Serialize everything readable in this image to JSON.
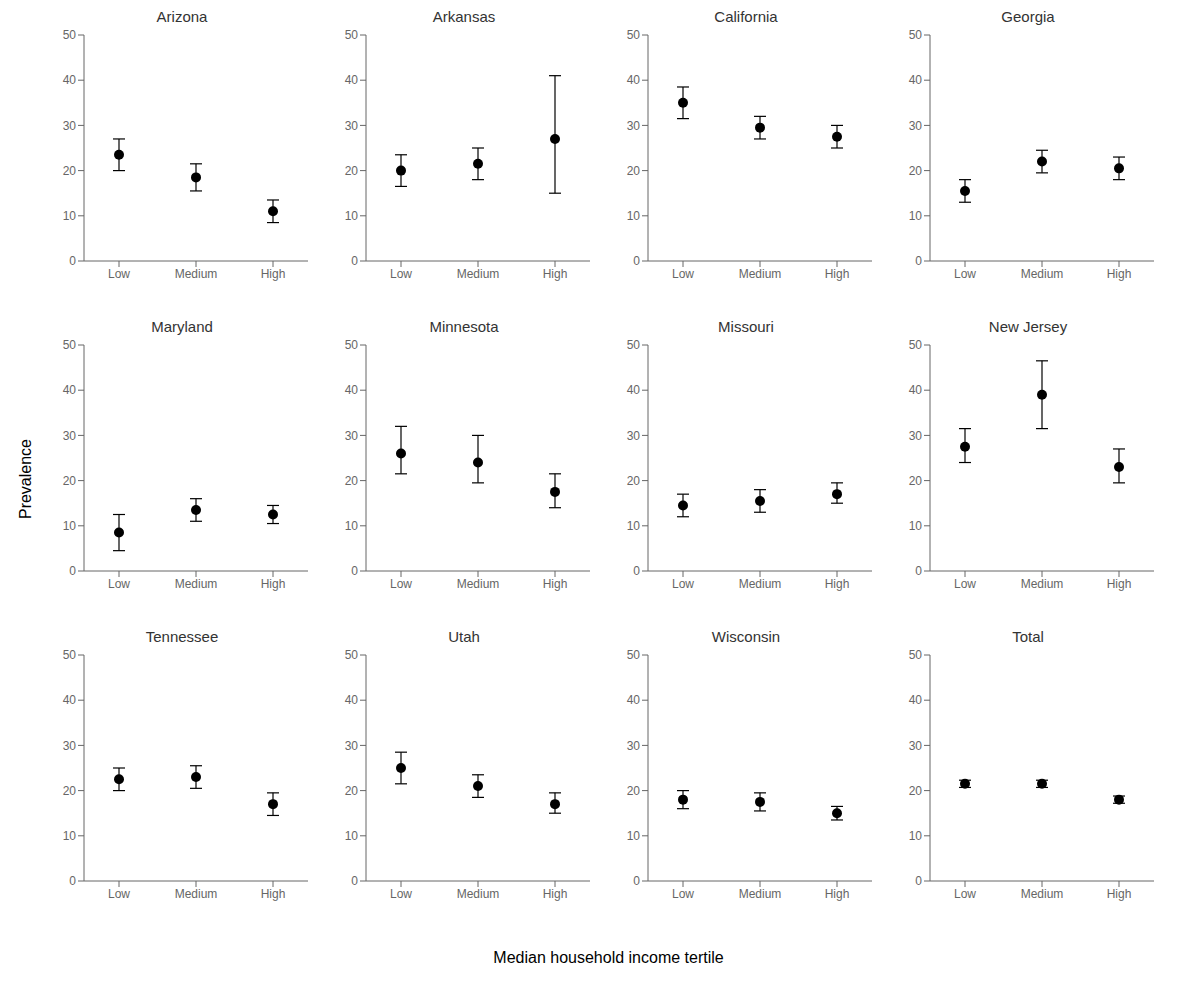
{
  "xlabel": "Median household income tertile",
  "ylabel": "Prevalence",
  "chart_data": [
    {
      "type": "scatter",
      "title": "Arizona",
      "categories": [
        "Low",
        "Medium",
        "High"
      ],
      "values": [
        23.5,
        18.5,
        11.0
      ],
      "errors_low": [
        3.5,
        3.0,
        2.5
      ],
      "errors_high": [
        3.5,
        3.0,
        2.5
      ],
      "color": "#000000",
      "ylim": [
        0,
        50
      ],
      "yticks": [
        0,
        10,
        20,
        30,
        40,
        50
      ],
      "grid": false
    },
    {
      "type": "scatter",
      "title": "Arkansas",
      "categories": [
        "Low",
        "Medium",
        "High"
      ],
      "values": [
        20.0,
        21.5,
        27.0
      ],
      "errors_low": [
        3.5,
        3.5,
        12.0
      ],
      "errors_high": [
        3.5,
        3.5,
        14.0
      ],
      "color": "#000000",
      "ylim": [
        0,
        50
      ],
      "yticks": [
        0,
        10,
        20,
        30,
        40,
        50
      ],
      "grid": false
    },
    {
      "type": "scatter",
      "title": "California",
      "categories": [
        "Low",
        "Medium",
        "High"
      ],
      "values": [
        35.0,
        29.5,
        27.5
      ],
      "errors_low": [
        3.5,
        2.5,
        2.5
      ],
      "errors_high": [
        3.5,
        2.5,
        2.5
      ],
      "color": "#000000",
      "ylim": [
        0,
        50
      ],
      "yticks": [
        0,
        10,
        20,
        30,
        40,
        50
      ],
      "grid": false
    },
    {
      "type": "scatter",
      "title": "Georgia",
      "categories": [
        "Low",
        "Medium",
        "High"
      ],
      "values": [
        15.5,
        22.0,
        20.5
      ],
      "errors_low": [
        2.5,
        2.5,
        2.5
      ],
      "errors_high": [
        2.5,
        2.5,
        2.5
      ],
      "color": "#000000",
      "ylim": [
        0,
        50
      ],
      "yticks": [
        0,
        10,
        20,
        30,
        40,
        50
      ],
      "grid": false
    },
    {
      "type": "scatter",
      "title": "Maryland",
      "categories": [
        "Low",
        "Medium",
        "High"
      ],
      "values": [
        8.5,
        13.5,
        12.5
      ],
      "errors_low": [
        4.0,
        2.5,
        2.0
      ],
      "errors_high": [
        4.0,
        2.5,
        2.0
      ],
      "color": "#000000",
      "ylim": [
        0,
        50
      ],
      "yticks": [
        0,
        10,
        20,
        30,
        40,
        50
      ],
      "grid": false
    },
    {
      "type": "scatter",
      "title": "Minnesota",
      "categories": [
        "Low",
        "Medium",
        "High"
      ],
      "values": [
        26.0,
        24.0,
        17.5
      ],
      "errors_low": [
        4.5,
        4.5,
        3.5
      ],
      "errors_high": [
        6.0,
        6.0,
        4.0
      ],
      "color": "#000000",
      "ylim": [
        0,
        50
      ],
      "yticks": [
        0,
        10,
        20,
        30,
        40,
        50
      ],
      "grid": false
    },
    {
      "type": "scatter",
      "title": "Missouri",
      "categories": [
        "Low",
        "Medium",
        "High"
      ],
      "values": [
        14.5,
        15.5,
        17.0
      ],
      "errors_low": [
        2.5,
        2.5,
        2.0
      ],
      "errors_high": [
        2.5,
        2.5,
        2.5
      ],
      "color": "#000000",
      "ylim": [
        0,
        50
      ],
      "yticks": [
        0,
        10,
        20,
        30,
        40,
        50
      ],
      "grid": false
    },
    {
      "type": "scatter",
      "title": "New Jersey",
      "categories": [
        "Low",
        "Medium",
        "High"
      ],
      "values": [
        27.5,
        39.0,
        23.0
      ],
      "errors_low": [
        3.5,
        7.5,
        3.5
      ],
      "errors_high": [
        4.0,
        7.5,
        4.0
      ],
      "color": "#000000",
      "ylim": [
        0,
        50
      ],
      "yticks": [
        0,
        10,
        20,
        30,
        40,
        50
      ],
      "grid": false
    },
    {
      "type": "scatter",
      "title": "Tennessee",
      "categories": [
        "Low",
        "Medium",
        "High"
      ],
      "values": [
        22.5,
        23.0,
        17.0
      ],
      "errors_low": [
        2.5,
        2.5,
        2.5
      ],
      "errors_high": [
        2.5,
        2.5,
        2.5
      ],
      "color": "#000000",
      "ylim": [
        0,
        50
      ],
      "yticks": [
        0,
        10,
        20,
        30,
        40,
        50
      ],
      "grid": false
    },
    {
      "type": "scatter",
      "title": "Utah",
      "categories": [
        "Low",
        "Medium",
        "High"
      ],
      "values": [
        25.0,
        21.0,
        17.0
      ],
      "errors_low": [
        3.5,
        2.5,
        2.0
      ],
      "errors_high": [
        3.5,
        2.5,
        2.5
      ],
      "color": "#000000",
      "ylim": [
        0,
        50
      ],
      "yticks": [
        0,
        10,
        20,
        30,
        40,
        50
      ],
      "grid": false
    },
    {
      "type": "scatter",
      "title": "Wisconsin",
      "categories": [
        "Low",
        "Medium",
        "High"
      ],
      "values": [
        18.0,
        17.5,
        15.0
      ],
      "errors_low": [
        2.0,
        2.0,
        1.5
      ],
      "errors_high": [
        2.0,
        2.0,
        1.5
      ],
      "color": "#000000",
      "ylim": [
        0,
        50
      ],
      "yticks": [
        0,
        10,
        20,
        30,
        40,
        50
      ],
      "grid": false
    },
    {
      "type": "scatter",
      "title": "Total",
      "categories": [
        "Low",
        "Medium",
        "High"
      ],
      "values": [
        21.5,
        21.5,
        18.0
      ],
      "errors_low": [
        0.8,
        0.8,
        0.8
      ],
      "errors_high": [
        0.8,
        0.8,
        0.8
      ],
      "color": "#000000",
      "ylim": [
        0,
        50
      ],
      "yticks": [
        0,
        10,
        20,
        30,
        40,
        50
      ],
      "grid": false
    }
  ]
}
